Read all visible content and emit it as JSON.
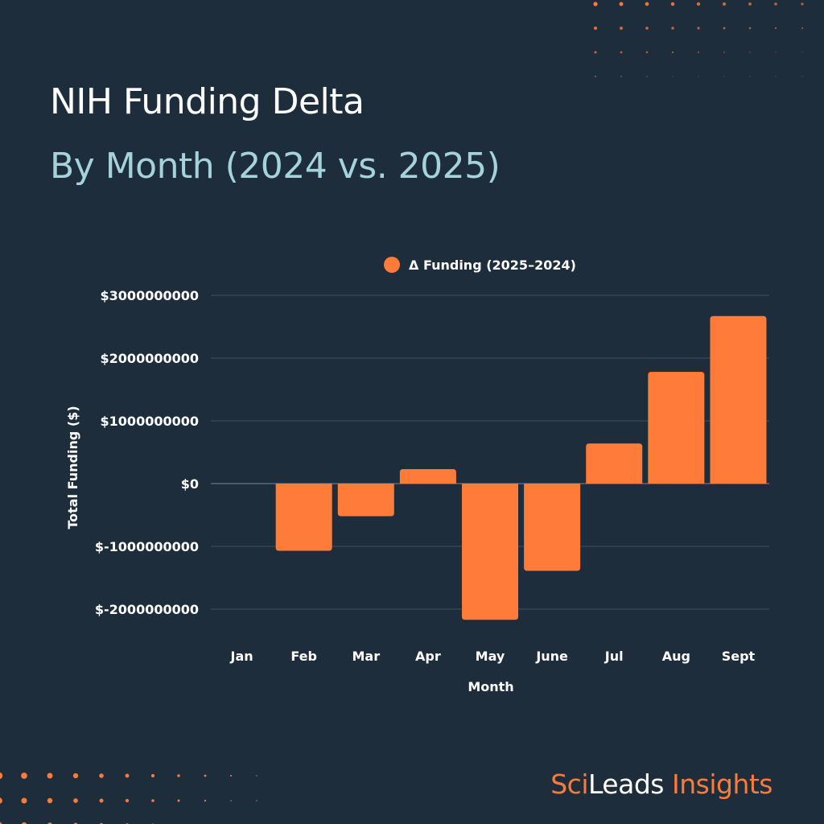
{
  "header": {
    "title": "NIH Funding Delta",
    "subtitle": "By Month (2024 vs. 2025)"
  },
  "brand": {
    "part1": "Sci",
    "part2": "Leads",
    "part3": "Insights"
  },
  "colors": {
    "background": "#1e2d3c",
    "accent": "#ff7b3a",
    "subtitle": "#a5d3da",
    "gridline": "#3f4e5d"
  },
  "chart_data": {
    "type": "bar",
    "title": "",
    "xlabel": "Month",
    "ylabel": "Total Funding ($)",
    "categories": [
      "Jan",
      "Feb",
      "Mar",
      "Apr",
      "May",
      "June",
      "Jul",
      "Aug",
      "Sept"
    ],
    "series": [
      {
        "name": "Δ Funding (2025–2024)",
        "color": "#ff7b3a",
        "values": [
          0,
          -1070000000,
          -520000000,
          230000000,
          -2170000000,
          -1390000000,
          640000000,
          1780000000,
          2670000000
        ]
      }
    ],
    "ylim": [
      -2300000000,
      3000000000
    ],
    "yticks": [
      3000000000,
      2000000000,
      1000000000,
      0,
      -1000000000,
      -2000000000
    ],
    "ytick_labels": [
      "$3000000000",
      "$2000000000",
      "$1000000000",
      "$0",
      "$-1000000000",
      "$-2000000000"
    ],
    "grid": true,
    "legend": "top-center"
  }
}
